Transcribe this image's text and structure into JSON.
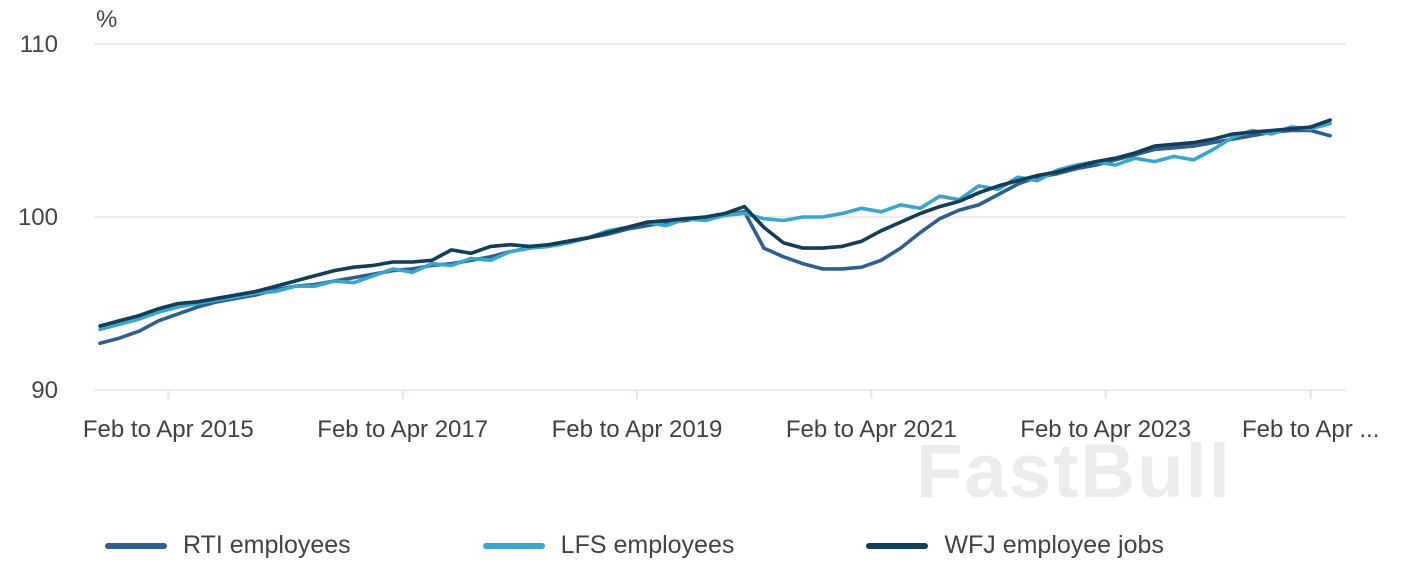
{
  "watermark": "FastBull",
  "chart_data": {
    "type": "line",
    "title": "",
    "ylabel": "%",
    "ylim": [
      90,
      110
    ],
    "grid": "horizontal-only",
    "legend_position": "bottom",
    "y_ticks": [
      110,
      100,
      90
    ],
    "x_ticks": [
      {
        "month": 7,
        "label": "Feb to Apr 2015"
      },
      {
        "month": 31,
        "label": "Feb to Apr 2017"
      },
      {
        "month": 55,
        "label": "Feb to Apr 2019"
      },
      {
        "month": 79,
        "label": "Feb to Apr 2021"
      },
      {
        "month": 103,
        "label": "Feb to Apr 2023"
      },
      {
        "month": 124,
        "label": "Feb to Apr ..."
      }
    ],
    "x_month_max": 127,
    "x_months": [
      0,
      2,
      4,
      6,
      8,
      10,
      12,
      14,
      16,
      18,
      20,
      22,
      24,
      26,
      28,
      30,
      32,
      34,
      36,
      38,
      40,
      42,
      44,
      46,
      48,
      50,
      52,
      54,
      56,
      58,
      60,
      62,
      64,
      66,
      68,
      70,
      72,
      74,
      76,
      78,
      80,
      82,
      84,
      86,
      88,
      90,
      92,
      94,
      96,
      98,
      100,
      102,
      104,
      106,
      108,
      110,
      112,
      114,
      116,
      118,
      120,
      122,
      124,
      126
    ],
    "colors": {
      "grid": "#e2e5ef",
      "axis_text": "#43464d",
      "watermark": "#ececee"
    },
    "series": [
      {
        "id": "rti",
        "name": "RTI employees",
        "color": "#2f5f8e",
        "values": [
          92.7,
          93.0,
          93.4,
          94.0,
          94.4,
          94.8,
          95.1,
          95.3,
          95.5,
          95.8,
          96.0,
          96.1,
          96.3,
          96.5,
          96.7,
          96.9,
          97.0,
          97.2,
          97.3,
          97.5,
          97.7,
          98.0,
          98.2,
          98.4,
          98.6,
          98.8,
          99.0,
          99.3,
          99.5,
          99.7,
          99.8,
          100.0,
          100.1,
          100.3,
          98.2,
          97.7,
          97.3,
          97.0,
          97.0,
          97.1,
          97.5,
          98.2,
          99.1,
          99.9,
          100.4,
          100.7,
          101.3,
          101.9,
          102.3,
          102.5,
          102.8,
          103.0,
          103.3,
          103.6,
          103.9,
          104.0,
          104.1,
          104.3,
          104.5,
          104.7,
          104.9,
          105.0,
          105.0,
          104.7
        ]
      },
      {
        "id": "lfs",
        "name": "LFS employees",
        "color": "#3aa6c9",
        "values": [
          93.5,
          93.8,
          94.1,
          94.5,
          94.8,
          95.0,
          95.2,
          95.4,
          95.6,
          95.7,
          96.0,
          96.0,
          96.3,
          96.2,
          96.6,
          97.0,
          96.8,
          97.3,
          97.2,
          97.6,
          97.5,
          98.0,
          98.2,
          98.3,
          98.5,
          98.8,
          99.2,
          99.4,
          99.7,
          99.5,
          99.9,
          99.8,
          100.1,
          100.2,
          99.9,
          99.8,
          100.0,
          100.0,
          100.2,
          100.5,
          100.3,
          100.7,
          100.5,
          101.2,
          101.0,
          101.8,
          101.6,
          102.3,
          102.1,
          102.7,
          103.0,
          103.2,
          103.0,
          103.4,
          103.2,
          103.5,
          103.3,
          103.9,
          104.6,
          105.0,
          104.8,
          105.2,
          105.1,
          105.4
        ]
      },
      {
        "id": "wfj",
        "name": "WFJ employee jobs",
        "color": "#143d57",
        "values": [
          93.7,
          94.0,
          94.3,
          94.7,
          95.0,
          95.1,
          95.3,
          95.5,
          95.7,
          96.0,
          96.3,
          96.6,
          96.9,
          97.1,
          97.2,
          97.4,
          97.4,
          97.5,
          98.1,
          97.9,
          98.3,
          98.4,
          98.3,
          98.4,
          98.6,
          98.8,
          99.1,
          99.4,
          99.7,
          99.8,
          99.9,
          100.0,
          100.2,
          100.6,
          99.4,
          98.5,
          98.2,
          98.2,
          98.3,
          98.6,
          99.2,
          99.7,
          100.2,
          100.6,
          100.9,
          101.4,
          101.8,
          102.1,
          102.4,
          102.6,
          102.9,
          103.2,
          103.4,
          103.7,
          104.1,
          104.2,
          104.3,
          104.5,
          104.8,
          104.9,
          105.0,
          105.1,
          105.2,
          105.6
        ]
      }
    ]
  }
}
